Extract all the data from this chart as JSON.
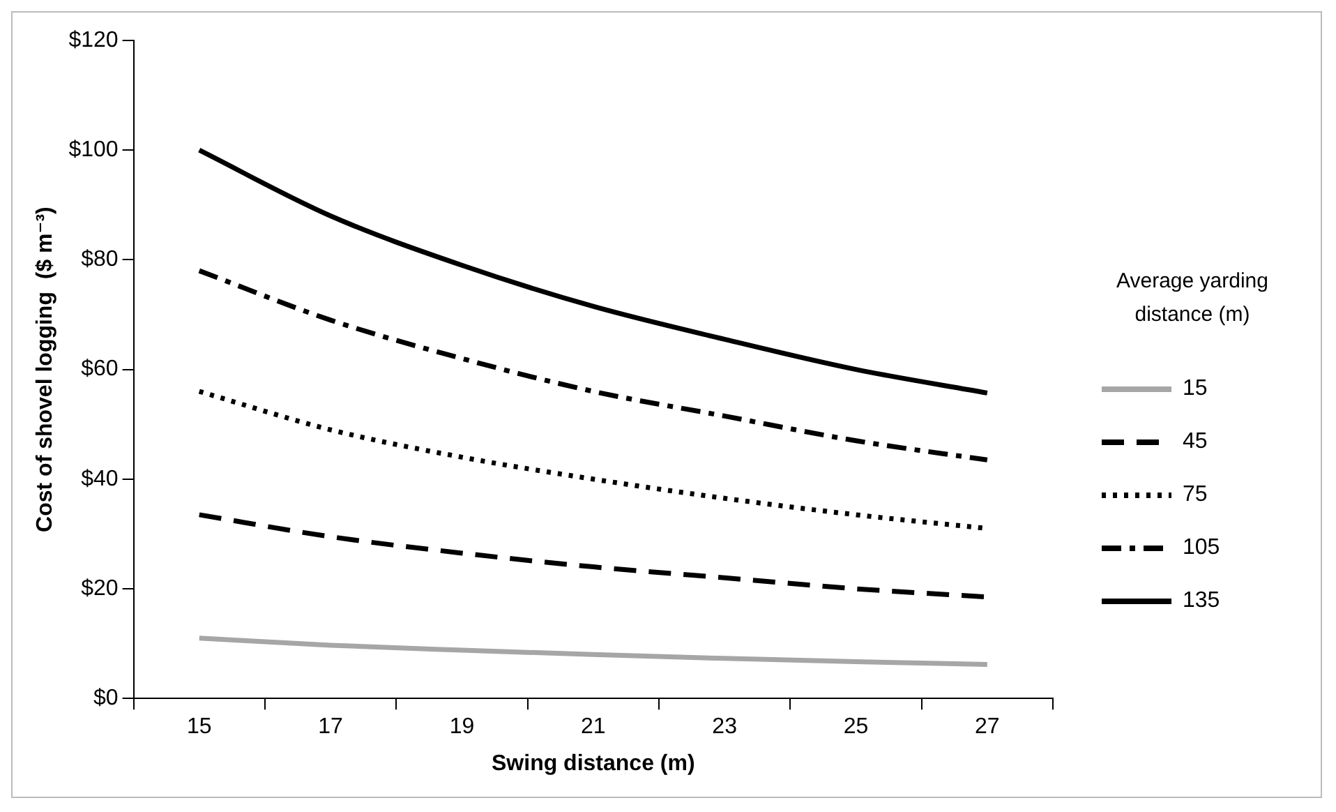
{
  "chart_data": {
    "type": "line",
    "xlabel": "Swing distance (m)",
    "ylabel": "Cost of shovel logging  ($ m⁻³)",
    "legend_title": "Average yarding distance  (m)",
    "categories": [
      "15",
      "17",
      "19",
      "21",
      "23",
      "25",
      "27"
    ],
    "series": [
      {
        "name": "15",
        "color": "#a6a6a6",
        "line_style": "solid",
        "values": [
          11,
          9.7,
          8.8,
          8,
          7.3,
          6.7,
          6.2
        ]
      },
      {
        "name": "45",
        "color": "#000000",
        "line_style": "dashed",
        "values": [
          33.5,
          29.5,
          26.5,
          24,
          22,
          20,
          18.5
        ]
      },
      {
        "name": "75",
        "color": "#000000",
        "line_style": "dotted",
        "values": [
          56,
          49,
          44,
          40,
          36.5,
          33.5,
          31
        ]
      },
      {
        "name": "105",
        "color": "#000000",
        "line_style": "dashdot",
        "values": [
          78,
          69,
          62,
          56,
          51.5,
          47,
          43.5
        ]
      },
      {
        "name": "135",
        "color": "#000000",
        "line_style": "solid",
        "values": [
          100,
          88,
          79,
          71.5,
          65.5,
          60,
          55.7
        ]
      }
    ],
    "ylim": [
      0,
      120
    ],
    "yticks": [
      {
        "value": 0,
        "label": "$0"
      },
      {
        "value": 20,
        "label": "$20"
      },
      {
        "value": 40,
        "label": "$40"
      },
      {
        "value": 60,
        "label": "$60"
      },
      {
        "value": 80,
        "label": "$80"
      },
      {
        "value": 100,
        "label": "$100"
      },
      {
        "value": 120,
        "label": "$120"
      }
    ],
    "grid": false,
    "legend": "right",
    "marker": "none"
  }
}
